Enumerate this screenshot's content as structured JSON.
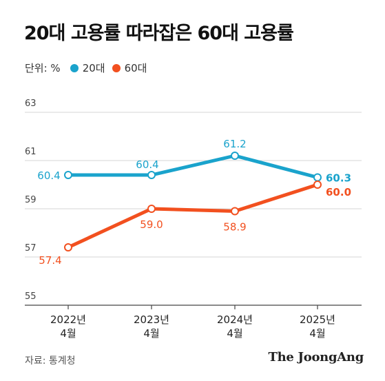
{
  "title": "20대 고용률 따라잡은 60대 고용률",
  "legend": {
    "unit": "단위: %",
    "items": [
      {
        "label": "20대",
        "color": "#1aa3cc"
      },
      {
        "label": "60대",
        "color": "#f2501f"
      }
    ]
  },
  "source": "자료: 통계청",
  "brand": "The JoongAng",
  "chart_data": {
    "type": "line",
    "categories": [
      [
        "2022년",
        "4월"
      ],
      [
        "2023년",
        "4월"
      ],
      [
        "2024년",
        "4월"
      ],
      [
        "2025년",
        "4월"
      ]
    ],
    "yticks": [
      63,
      61,
      59,
      57,
      55
    ],
    "ylim": [
      55,
      63
    ],
    "grid": true,
    "series": [
      {
        "name": "20대",
        "color": "#1aa3cc",
        "values": [
          60.4,
          60.4,
          61.2,
          60.3
        ],
        "labels": [
          "60.4",
          "60.4",
          "61.2",
          "60.3"
        ]
      },
      {
        "name": "60대",
        "color": "#f2501f",
        "values": [
          57.4,
          59.0,
          58.9,
          60.0
        ],
        "labels": [
          "57.4",
          "59.0",
          "58.9",
          "60.0"
        ]
      }
    ]
  }
}
